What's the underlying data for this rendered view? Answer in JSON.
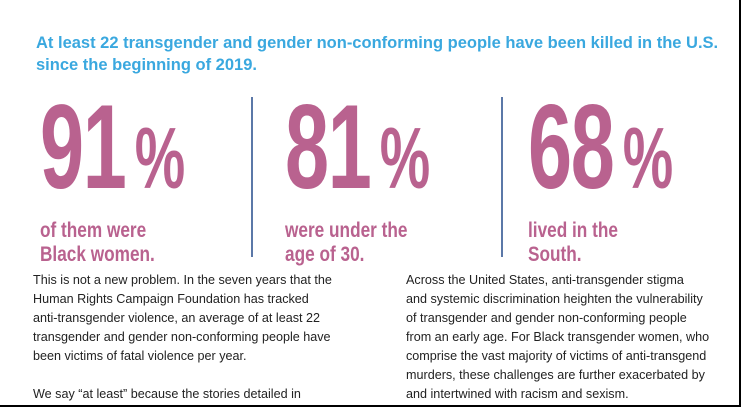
{
  "headline": "At least 22 transgender and gender non-conforming people have been killed in the U.S. since the beginning of 2019.",
  "stats": [
    {
      "value": "91",
      "unit": "%",
      "line1": "of them were",
      "line2": "Black women."
    },
    {
      "value": "81",
      "unit": "%",
      "line1": "were under the",
      "line2": "age of 30."
    },
    {
      "value": "68",
      "unit": "%",
      "line1": "lived in the",
      "line2": "South."
    }
  ],
  "colors": {
    "headline": "#3aa8df",
    "stat": "#b9628f",
    "divider": "#5b78a8",
    "body": "#222222"
  },
  "left_column": {
    "p1": [
      "This is not a new problem. In the seven years that the",
      "Human Rights Campaign Foundation has tracked",
      "anti-transgender violence, an average of at least 22",
      "transgender and gender non-conforming people have",
      "been victims of fatal violence per year."
    ],
    "p2": [
      "We say “at least” because the stories detailed in"
    ]
  },
  "right_column": {
    "p1": [
      "Across the United States, anti-transgender stigma",
      "and systemic discrimination heighten the vulnerability",
      "of transgender and gender non-conforming people",
      "from an early age. For Black transgender women, who",
      "comprise the vast majority of victims of anti-transgend",
      "murders, these challenges are further exacerbated by",
      "and intertwined with racism and sexism."
    ]
  }
}
